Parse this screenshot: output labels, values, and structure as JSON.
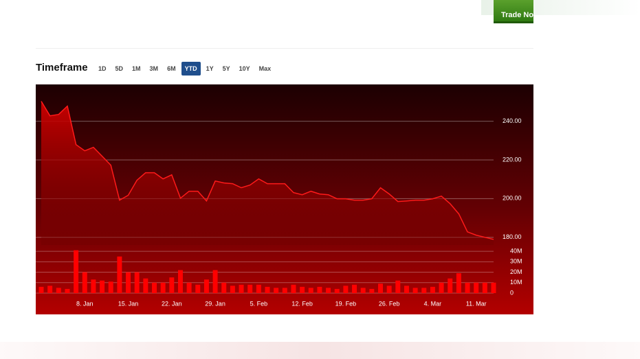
{
  "header": {
    "button": "Trade Now"
  },
  "timeframe": {
    "title": "Timeframe",
    "options": [
      "1D",
      "5D",
      "1M",
      "3M",
      "6M",
      "YTD",
      "1Y",
      "5Y",
      "10Y",
      "Max"
    ],
    "selected_index": 5
  },
  "chart_data": {
    "type": "stock",
    "categories": [
      null,
      null,
      null,
      null,
      null,
      "8. Jan",
      null,
      null,
      null,
      null,
      "15. Jan",
      null,
      null,
      null,
      null,
      "22. Jan",
      null,
      null,
      null,
      null,
      "29. Jan",
      null,
      null,
      null,
      null,
      "5. Feb",
      null,
      null,
      null,
      null,
      "12. Feb",
      null,
      null,
      null,
      null,
      "19. Feb",
      null,
      null,
      null,
      null,
      "26. Feb",
      null,
      null,
      null,
      null,
      "4. Mar",
      null,
      null,
      null,
      null,
      "11. Mar",
      null,
      null
    ],
    "values": [
      250.3,
      242.8,
      243.5,
      247.8,
      227.9,
      224.7,
      226.5,
      221.9,
      217.3,
      199.2,
      201.7,
      209.5,
      213.4,
      213.4,
      210.2,
      212.3,
      200.2,
      203.8,
      203.8,
      198.8,
      209.1,
      208.1,
      207.7,
      205.6,
      207.0,
      210.2,
      207.7,
      207.7,
      207.7,
      203.1,
      202.0,
      203.8,
      202.4,
      202.0,
      199.9,
      199.9,
      199.2,
      199.2,
      199.9,
      205.6,
      202.4,
      198.5,
      198.8,
      199.2,
      199.2,
      199.9,
      201.3,
      197.4,
      192.1,
      182.8,
      181.1,
      180.0,
      178.9
    ],
    "color": "#ff1a1a",
    "ylim": [
      176,
      259
    ],
    "yticks": [
      {
        "value": 180,
        "label": "180.00"
      },
      {
        "value": 200,
        "label": "200.00"
      },
      {
        "value": 220,
        "label": "220.00"
      },
      {
        "value": 240,
        "label": "240.00"
      }
    ],
    "grid": true,
    "volume": {
      "values": [
        6000000,
        7000000,
        5000000,
        4000000,
        41000000,
        20000000,
        13000000,
        12000000,
        11000000,
        35000000,
        20000000,
        20000000,
        14000000,
        10000000,
        10000000,
        15000000,
        22000000,
        10000000,
        8000000,
        13000000,
        22000000,
        10000000,
        7000000,
        8000000,
        8000000,
        8000000,
        6000000,
        5000000,
        5000000,
        8000000,
        6000000,
        5000000,
        6000000,
        5000000,
        4000000,
        7000000,
        8000000,
        5000000,
        4000000,
        9000000,
        7000000,
        12000000,
        7000000,
        5000000,
        5000000,
        6000000,
        10000000,
        14000000,
        19000000,
        10000000,
        10000000,
        10000000,
        10000000
      ],
      "color": "#ff0000",
      "ylim": [
        0,
        44000000
      ],
      "yticks": [
        0,
        {
          "value": 10000000,
          "label": "10M"
        },
        {
          "value": 20000000,
          "label": "20M"
        },
        {
          "value": 30000000,
          "label": "30M"
        },
        {
          "value": 40000000,
          "label": "40M"
        }
      ]
    }
  }
}
